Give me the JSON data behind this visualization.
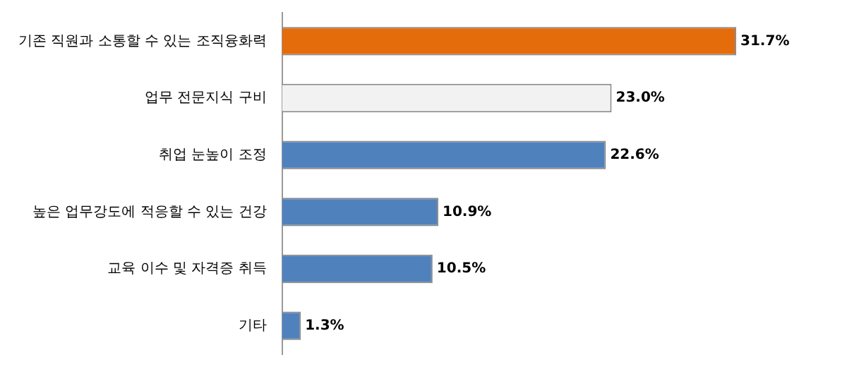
{
  "chart_data": {
    "type": "bar",
    "orientation": "horizontal",
    "categories": [
      "기존 직원과 소통할 수 있는 조직융화력",
      "업무 전문지식 구비",
      "취업 눈높이 조정",
      "높은 업무강도에 적응할 수 있는 건강",
      "교육 이수 및 자격증 취득",
      "기타"
    ],
    "values": [
      31.7,
      23.0,
      22.6,
      10.9,
      10.5,
      1.3
    ],
    "colors": [
      "#e46c0a",
      "#f2f2f2",
      "#4f81bd",
      "#4f81bd",
      "#4f81bd",
      "#4f81bd"
    ],
    "value_labels": [
      "31.7%",
      "23.0%",
      "22.6%",
      "10.9%",
      "10.5%",
      "1.3%"
    ],
    "legend": false
  }
}
